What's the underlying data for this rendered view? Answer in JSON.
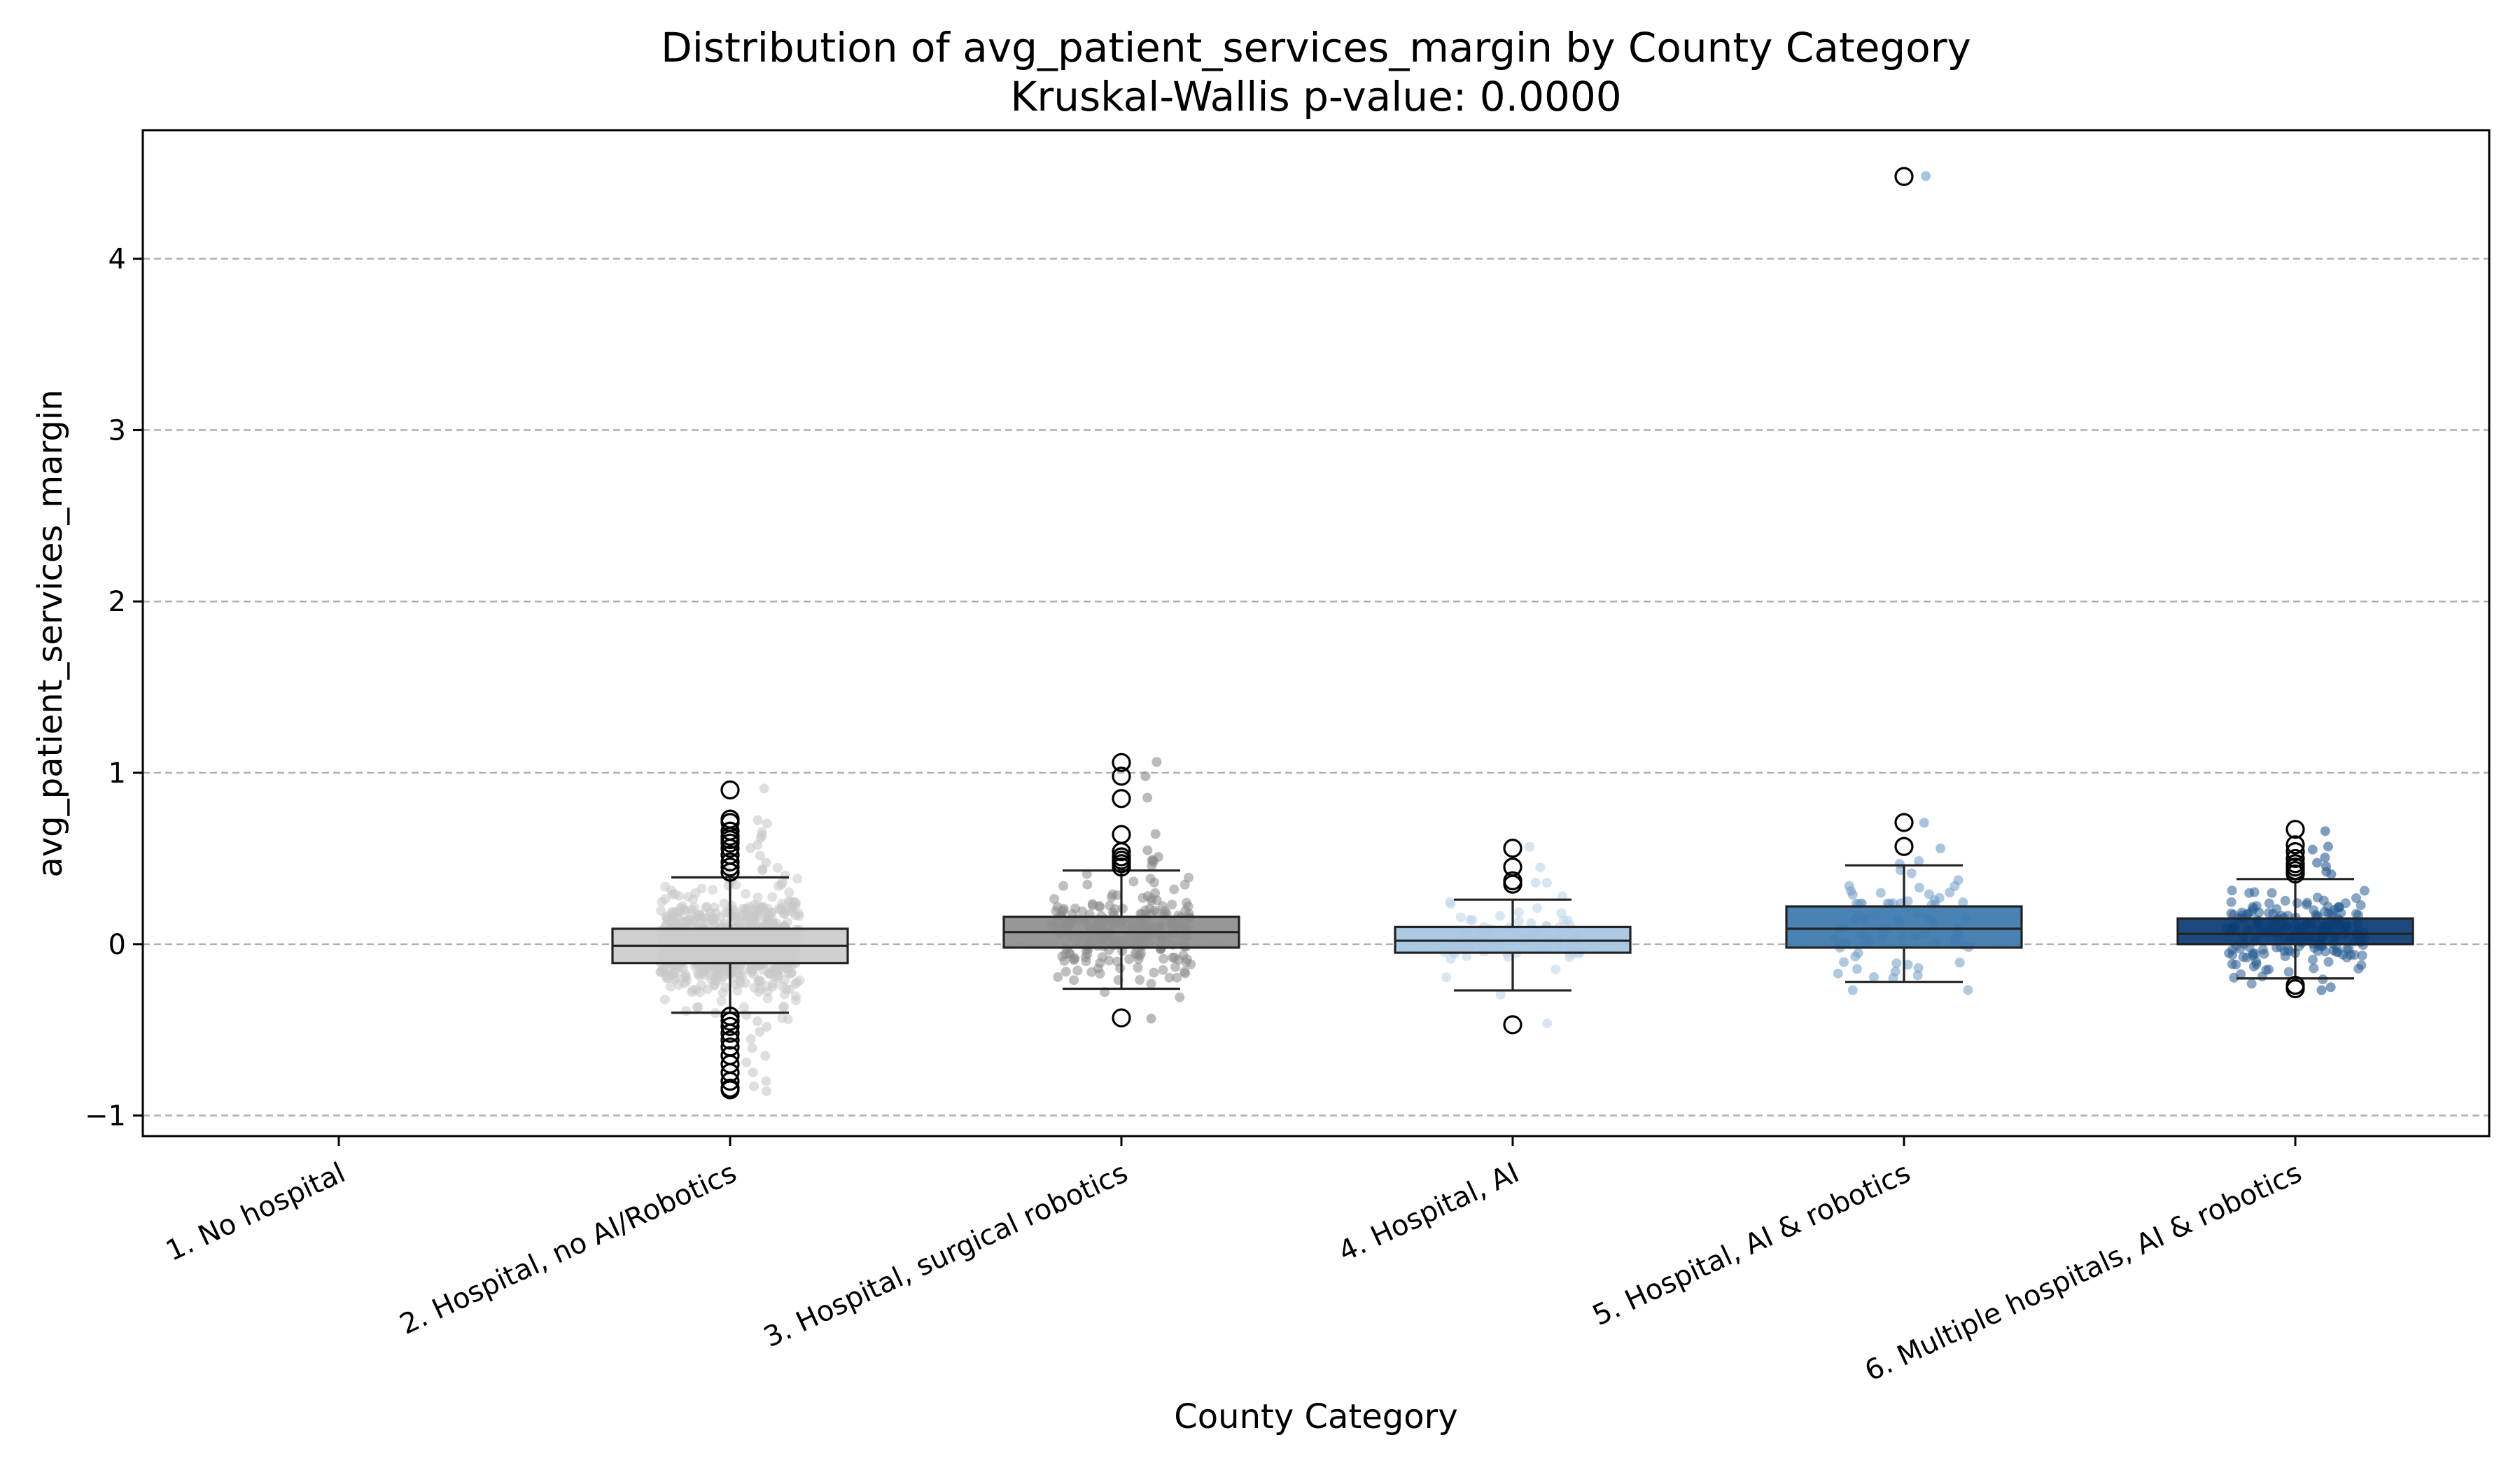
{
  "chart_data": {
    "type": "box",
    "title": "Distribution of avg_patient_services_margin by County Category",
    "subtitle": "Kruskal-Wallis p-value: 0.0000",
    "xlabel": "County Category",
    "ylabel": "avg_patient_services_margin",
    "ylim": [
      -1.12,
      4.75
    ],
    "yticks": [
      -1,
      0,
      1,
      2,
      3,
      4
    ],
    "ytick_labels": [
      "−1",
      "0",
      "1",
      "2",
      "3",
      "4"
    ],
    "grid": "y-dashed",
    "categories": [
      "1. No hospital",
      "2. Hospital, no AI/Robotics",
      "3. Hospital, surgical robotics",
      "4. Hospital, AI",
      "5. Hospital, AI & robotics",
      "6. Multiple hospitals, AI & robotics"
    ],
    "series": [
      {
        "category": "1. No hospital",
        "color": "#ffffff",
        "point_color": "#cccccc",
        "stats": null,
        "outliers": [],
        "point_count": 0
      },
      {
        "category": "2. Hospital, no AI/Robotics",
        "color": "#cccccc",
        "point_color": "#c8c8c8",
        "stats": {
          "whislo": -0.4,
          "q1": -0.11,
          "med": -0.01,
          "q3": 0.09,
          "whishi": 0.39
        },
        "outliers": [
          0.9,
          0.73,
          0.71,
          0.66,
          0.63,
          0.61,
          0.59,
          0.56,
          0.52,
          0.48,
          0.45,
          0.42,
          -0.42,
          -0.45,
          -0.48,
          -0.52,
          -0.56,
          -0.6,
          -0.65,
          -0.7,
          -0.75,
          -0.8,
          -0.84,
          -0.85
        ],
        "point_count": 700
      },
      {
        "category": "3. Hospital, surgical robotics",
        "color": "#8e8e8e",
        "point_color": "#8a8a8a",
        "stats": {
          "whislo": -0.26,
          "q1": -0.02,
          "med": 0.07,
          "q3": 0.16,
          "whishi": 0.43
        },
        "outliers": [
          1.06,
          0.98,
          0.85,
          0.64,
          0.54,
          0.51,
          0.49,
          0.47,
          0.45,
          -0.43
        ],
        "point_count": 250
      },
      {
        "category": "4. Hospital, AI",
        "color": "#a6c6e3",
        "point_color": "#bcd4ea",
        "stats": {
          "whislo": -0.27,
          "q1": -0.05,
          "med": 0.02,
          "q3": 0.1,
          "whishi": 0.26
        },
        "outliers": [
          0.56,
          0.45,
          0.37,
          0.35,
          -0.47
        ],
        "point_count": 70
      },
      {
        "category": "5. Hospital, AI & robotics",
        "color": "#3b78ad",
        "point_color": "#6d9dc8",
        "stats": {
          "whislo": -0.22,
          "q1": -0.02,
          "med": 0.09,
          "q3": 0.22,
          "whishi": 0.46
        },
        "outliers": [
          4.48,
          0.71,
          0.57
        ],
        "point_count": 80
      },
      {
        "category": "6. Multiple hospitals, AI & robotics",
        "color": "#083a72",
        "point_color": "#2a5d94",
        "stats": {
          "whislo": -0.2,
          "q1": 0.0,
          "med": 0.06,
          "q3": 0.15,
          "whishi": 0.38
        },
        "outliers": [
          0.67,
          0.58,
          0.54,
          0.5,
          0.47,
          0.45,
          0.43,
          0.41,
          -0.24,
          -0.26
        ],
        "point_count": 200
      }
    ]
  }
}
